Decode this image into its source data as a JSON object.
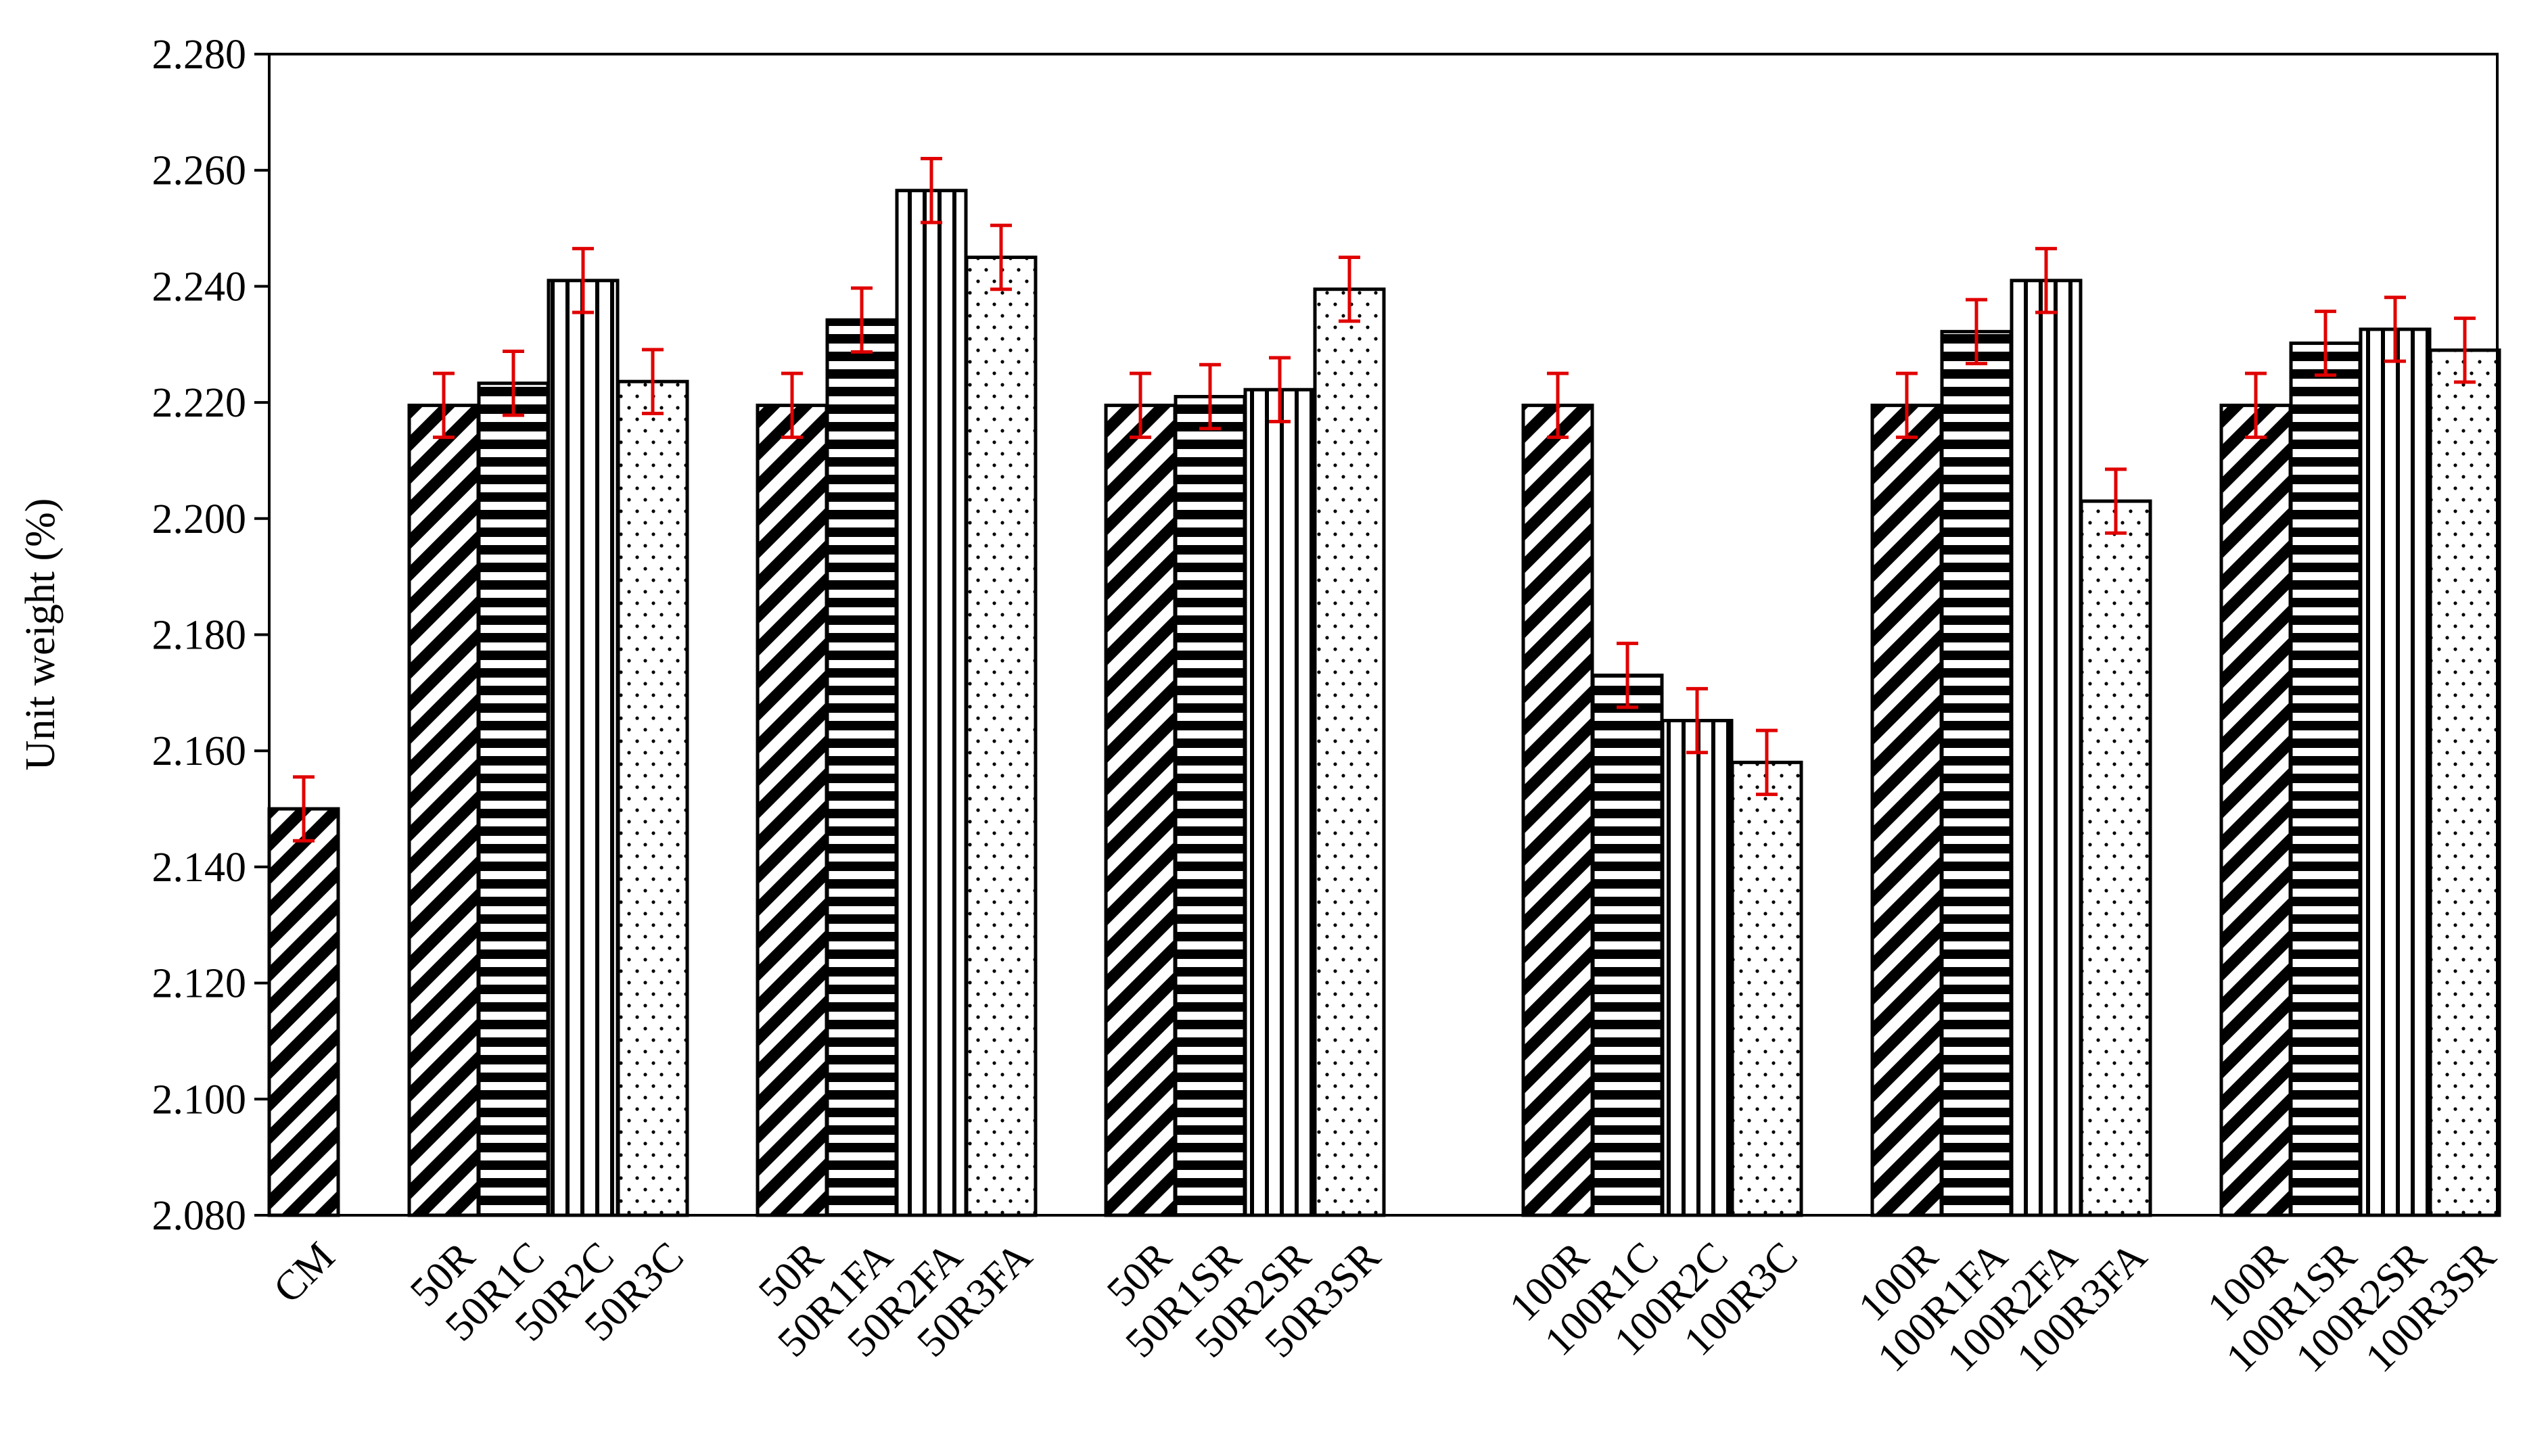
{
  "chart_data": {
    "type": "bar",
    "title": "",
    "xlabel": "",
    "ylabel": "Unit weight (%)",
    "ylim": [
      2.08,
      2.28
    ],
    "yticks": [
      "2.080",
      "2.100",
      "2.120",
      "2.140",
      "2.160",
      "2.180",
      "2.200",
      "2.220",
      "2.240",
      "2.260",
      "2.280"
    ],
    "grid": false,
    "error_bar_color": "#e00000",
    "bar_border_color": "#000000",
    "groups": [
      {
        "bars": [
          {
            "label": "CM",
            "value": 2.15,
            "error": 0.0055,
            "pattern": "diagonal"
          }
        ]
      },
      {
        "bars": [
          {
            "label": "50R",
            "value": 2.2195,
            "error": 0.0055,
            "pattern": "diagonal"
          },
          {
            "label": "50R1C",
            "value": 2.2233,
            "error": 0.0055,
            "pattern": "horizontal"
          },
          {
            "label": "50R2C",
            "value": 2.241,
            "error": 0.0055,
            "pattern": "vertical"
          },
          {
            "label": "50R3C",
            "value": 2.2236,
            "error": 0.0055,
            "pattern": "dots"
          }
        ]
      },
      {
        "bars": [
          {
            "label": "50R",
            "value": 2.2195,
            "error": 0.0055,
            "pattern": "diagonal"
          },
          {
            "label": "50R1FA",
            "value": 2.2342,
            "error": 0.0055,
            "pattern": "horizontal"
          },
          {
            "label": "50R2FA",
            "value": 2.2565,
            "error": 0.0055,
            "pattern": "vertical"
          },
          {
            "label": "50R3FA",
            "value": 2.245,
            "error": 0.0055,
            "pattern": "dots"
          }
        ]
      },
      {
        "bars": [
          {
            "label": "50R",
            "value": 2.2195,
            "error": 0.0055,
            "pattern": "diagonal"
          },
          {
            "label": "50R1SR",
            "value": 2.221,
            "error": 0.0055,
            "pattern": "horizontal"
          },
          {
            "label": "50R2SR",
            "value": 2.2222,
            "error": 0.0055,
            "pattern": "vertical"
          },
          {
            "label": "50R3SR",
            "value": 2.2395,
            "error": 0.0055,
            "pattern": "dots"
          }
        ]
      },
      {
        "bars": [
          {
            "label": "100R",
            "value": 2.2195,
            "error": 0.0055,
            "pattern": "diagonal"
          },
          {
            "label": "100R1C",
            "value": 2.173,
            "error": 0.0055,
            "pattern": "horizontal"
          },
          {
            "label": "100R2C",
            "value": 2.1652,
            "error": 0.0055,
            "pattern": "vertical"
          },
          {
            "label": "100R3C",
            "value": 2.158,
            "error": 0.0055,
            "pattern": "dots"
          }
        ]
      },
      {
        "bars": [
          {
            "label": "100R",
            "value": 2.2195,
            "error": 0.0055,
            "pattern": "diagonal"
          },
          {
            "label": "100R1FA",
            "value": 2.2322,
            "error": 0.0055,
            "pattern": "horizontal"
          },
          {
            "label": "100R2FA",
            "value": 2.241,
            "error": 0.0055,
            "pattern": "vertical"
          },
          {
            "label": "100R3FA",
            "value": 2.203,
            "error": 0.0055,
            "pattern": "dots"
          }
        ]
      },
      {
        "bars": [
          {
            "label": "100R",
            "value": 2.2195,
            "error": 0.0055,
            "pattern": "diagonal"
          },
          {
            "label": "100R1SR",
            "value": 2.2302,
            "error": 0.0055,
            "pattern": "horizontal"
          },
          {
            "label": "100R2SR",
            "value": 2.2326,
            "error": 0.0055,
            "pattern": "vertical"
          },
          {
            "label": "100R3SR",
            "value": 2.229,
            "error": 0.0055,
            "pattern": "dots"
          }
        ]
      }
    ]
  }
}
